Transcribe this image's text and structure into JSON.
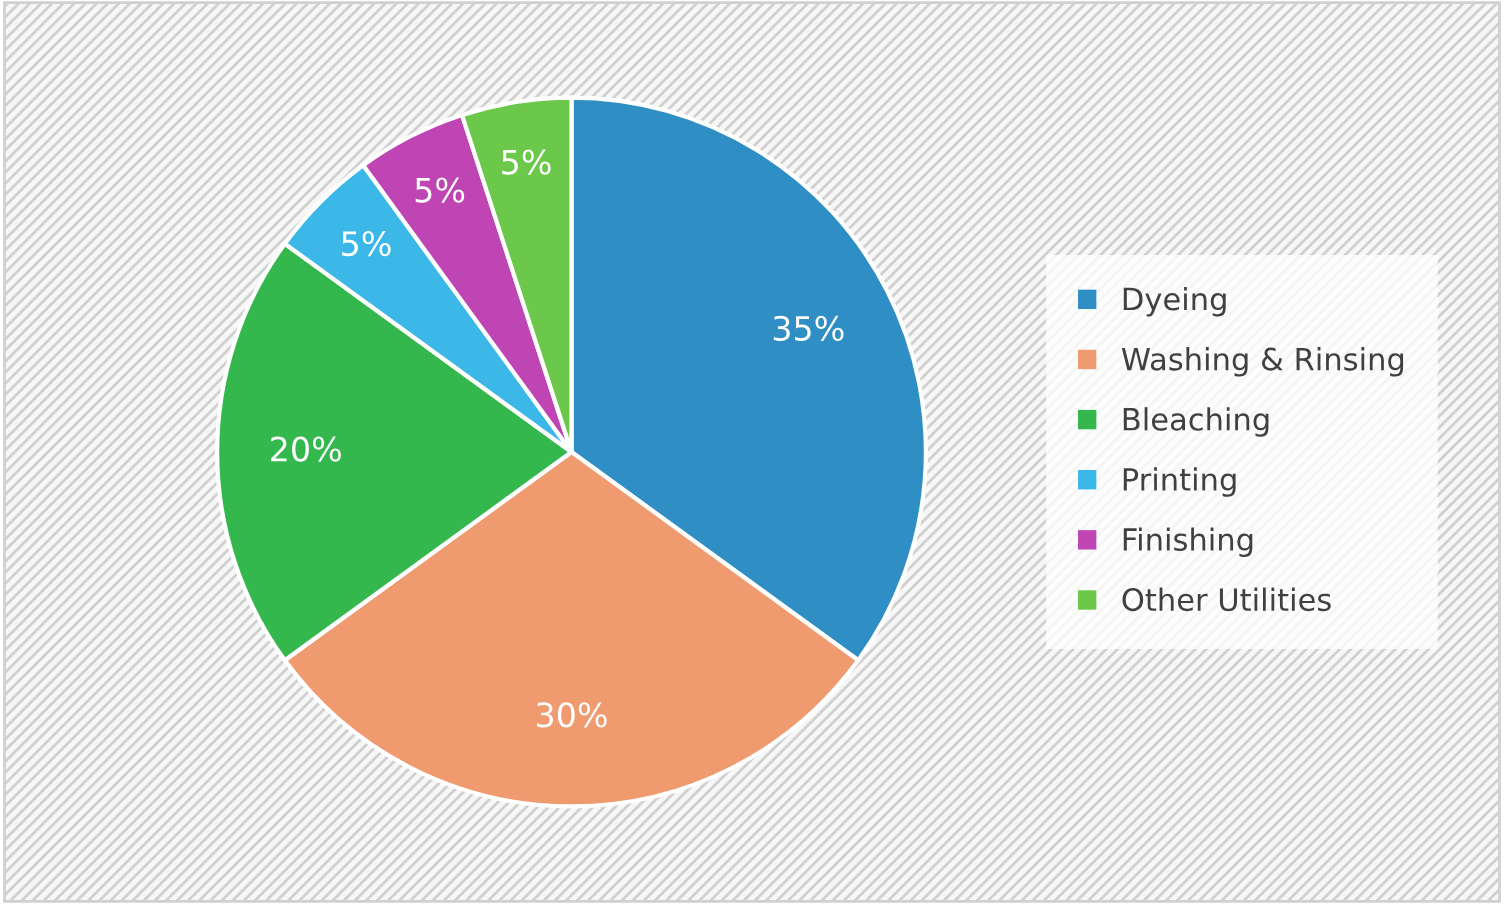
{
  "chart_data": {
    "type": "pie",
    "categories": [
      "Dyeing",
      "Washing & Rinsing",
      "Bleaching",
      "Printing",
      "Finishing",
      "Other Utilities"
    ],
    "values": [
      35,
      30,
      20,
      5,
      5,
      5
    ],
    "colors": [
      "#2f8fc4",
      "#f09a70",
      "#34b84e",
      "#3cb8e8",
      "#c045b4",
      "#6cc84a"
    ],
    "value_labels": [
      "35%",
      "30%",
      "20%",
      "5%",
      "5%",
      "5%"
    ],
    "legend": "right"
  }
}
